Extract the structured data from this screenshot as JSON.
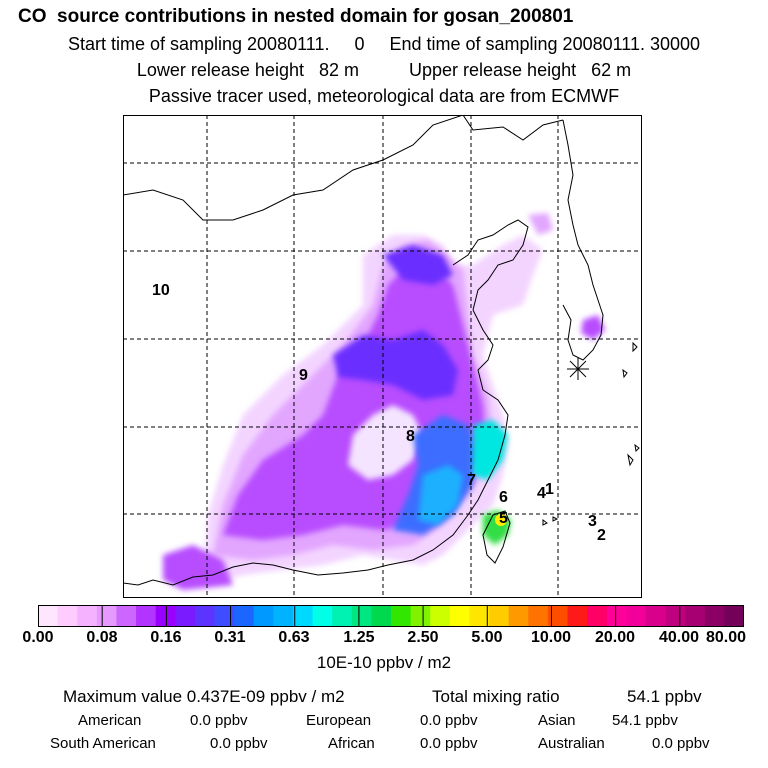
{
  "header": {
    "title": "CO  source contributions in nested domain for gosan_200801",
    "sampling": "Start time of sampling 20080111.     0     End time of sampling 20080111. 30000",
    "heights": "Lower release height   82 m          Upper release height   62 m",
    "note": "Passive tracer used, meteorological data are from ECMWF"
  },
  "map": {
    "regions": [
      "10",
      "9",
      "8",
      "7",
      "6",
      "5",
      "4",
      "1",
      "3",
      "2"
    ],
    "receptor_marker": "star-icon"
  },
  "colorbar": {
    "ticks": [
      "0.00",
      "0.08",
      "0.16",
      "0.31",
      "0.63",
      "1.25",
      "2.50",
      "5.00",
      "10.00",
      "20.00",
      "40.00",
      "80.00"
    ],
    "units": "10E-10 ppbv / m2",
    "colors": [
      "#ffe6ff",
      "#ffccff",
      "#f5b3ff",
      "#e699ff",
      "#cc66ff",
      "#b333ff",
      "#9900ff",
      "#7a1aff",
      "#5c33ff",
      "#3d4dff",
      "#1a66ff",
      "#0099ff",
      "#00b3ff",
      "#00d9ff",
      "#00ffe6",
      "#00f2b3",
      "#00e680",
      "#00d94d",
      "#33e600",
      "#80f200",
      "#ccff00",
      "#ffff00",
      "#ffe600",
      "#ffcc00",
      "#ff9900",
      "#ff7300",
      "#ff4d00",
      "#ff1a1a",
      "#ff0066",
      "#ff0099",
      "#f20099",
      "#d9008c",
      "#bf007f",
      "#a60073",
      "#8c0066",
      "#730059"
    ]
  },
  "stats": {
    "max_label": "Maximum value  0.437E-09 ppbv / m2",
    "total_label": "Total mixing ratio",
    "total_value": "54.1 ppbv",
    "sources": [
      {
        "name": "American",
        "value": "0.0 ppbv"
      },
      {
        "name": "European",
        "value": "0.0 ppbv"
      },
      {
        "name": "Asian",
        "value": "54.1 ppbv"
      },
      {
        "name": "South American",
        "value": "0.0 ppbv"
      },
      {
        "name": "African",
        "value": "0.0 ppbv"
      },
      {
        "name": "Australian",
        "value": "0.0 ppbv"
      }
    ]
  }
}
